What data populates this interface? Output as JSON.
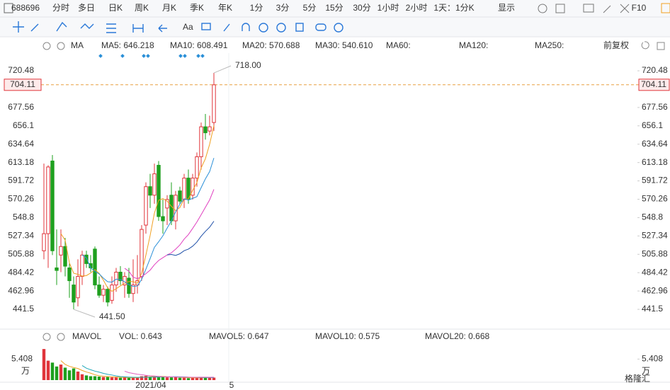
{
  "toolbar": {
    "items": [
      "688696",
      "分时",
      "多日",
      "日K",
      "周K",
      "月K",
      "季K",
      "年K",
      "1分",
      "3分",
      "5分",
      "15分",
      "30分",
      "1小时",
      "2小时",
      "1天：1分K",
      "显示",
      "F10"
    ],
    "active": 3
  },
  "indicator_bar": {
    "name": "MA",
    "items": [
      {
        "label": "MA5: 646.218",
        "color": "#f0a020"
      },
      {
        "label": "MA10: 608.491",
        "color": "#2a8fd8"
      },
      {
        "label": "MA20: 570.688",
        "color": "#e040c0"
      },
      {
        "label": "MA30: 540.610",
        "color": "#1e4fa8"
      },
      {
        "label": "MA60:",
        "color": "#30b030"
      },
      {
        "label": "MA120:",
        "color": "#e04040"
      },
      {
        "label": "MA250:",
        "color": "#40d8d8"
      }
    ],
    "adjust": "前复权"
  },
  "volume_bar": {
    "name": "MAVOL",
    "items": [
      {
        "label": "VOL: 0.643",
        "color": "#e04040"
      },
      {
        "label": "MAVOL5: 0.647",
        "color": "#f0a020"
      },
      {
        "label": "MAVOL10: 0.575",
        "color": "#20a8b8"
      },
      {
        "label": "MAVOL20: 0.668",
        "color": "#e060c0"
      }
    ]
  },
  "watermark": "格隆汇",
  "chart_data": {
    "type": "candlestick",
    "up_color": "#e0353b",
    "down_color": "#1ea01e",
    "ohlc": [
      [
        510,
        612,
        500,
        530
      ],
      [
        530,
        610,
        490,
        608
      ],
      [
        615,
        622,
        505,
        510
      ],
      [
        490,
        535,
        470,
        487
      ],
      [
        505,
        535,
        485,
        515
      ],
      [
        515,
        525,
        480,
        492
      ],
      [
        490,
        495,
        455,
        475
      ],
      [
        470,
        480,
        441.5,
        450
      ],
      [
        455,
        500,
        445,
        480
      ],
      [
        480,
        510,
        470,
        505
      ],
      [
        505,
        510,
        490,
        495
      ],
      [
        495,
        505,
        485,
        490
      ],
      [
        512,
        515,
        465,
        470
      ],
      [
        470,
        480,
        455,
        458
      ],
      [
        458,
        470,
        450,
        465
      ],
      [
        465,
        468,
        445,
        450
      ],
      [
        452,
        480,
        448,
        470
      ],
      [
        470,
        490,
        462,
        485
      ],
      [
        485,
        492,
        470,
        475
      ],
      [
        470,
        485,
        455,
        480
      ],
      [
        478,
        490,
        455,
        460
      ],
      [
        460,
        500,
        450,
        470
      ],
      [
        470,
        505,
        460,
        475
      ],
      [
        480,
        540,
        475,
        535
      ],
      [
        540,
        590,
        530,
        585
      ],
      [
        585,
        600,
        560,
        575
      ],
      [
        575,
        612,
        565,
        600
      ],
      [
        610,
        615,
        545,
        550
      ],
      [
        550,
        570,
        530,
        545
      ],
      [
        560,
        575,
        540,
        570
      ],
      [
        575,
        590,
        540,
        545
      ],
      [
        545,
        580,
        535,
        575
      ],
      [
        580,
        585,
        565,
        568
      ],
      [
        570,
        600,
        560,
        595
      ],
      [
        595,
        605,
        565,
        570
      ],
      [
        575,
        600,
        570,
        595
      ],
      [
        595,
        625,
        585,
        620
      ],
      [
        620,
        660,
        605,
        655
      ],
      [
        655,
        670,
        640,
        648
      ],
      [
        650,
        668,
        645,
        655
      ],
      [
        660,
        718,
        650,
        704.11
      ]
    ],
    "ylim": [
      422.5,
      741.2
    ],
    "yticks": [
      720.48,
      677.56,
      656.1,
      634.64,
      613.18,
      591.72,
      570.26,
      548.8,
      527.34,
      505.88,
      484.42,
      462.96,
      441.5
    ],
    "last_price": 704.11,
    "high_label": "718.00",
    "low_label": "441.50",
    "x_labels": [
      "2021/04",
      "5"
    ],
    "volume": [
      8.0,
      5.0,
      4.5,
      3.5,
      4.0,
      3.2,
      2.5,
      3.0,
      2.2,
      1.5,
      1.2,
      1.0,
      1.0,
      0.9,
      0.8,
      0.8,
      0.7,
      0.7,
      0.6,
      0.7,
      0.6,
      0.6,
      0.7,
      1.0,
      1.1,
      0.9,
      0.8,
      1.0,
      0.9,
      0.7,
      0.7,
      0.8,
      0.6,
      0.6,
      0.5,
      0.6,
      0.7,
      0.8,
      0.6,
      0.6,
      0.643
    ],
    "vlim": [
      0,
      8.2
    ],
    "vticks": [
      5.408
    ],
    "volume_unit": "万"
  }
}
